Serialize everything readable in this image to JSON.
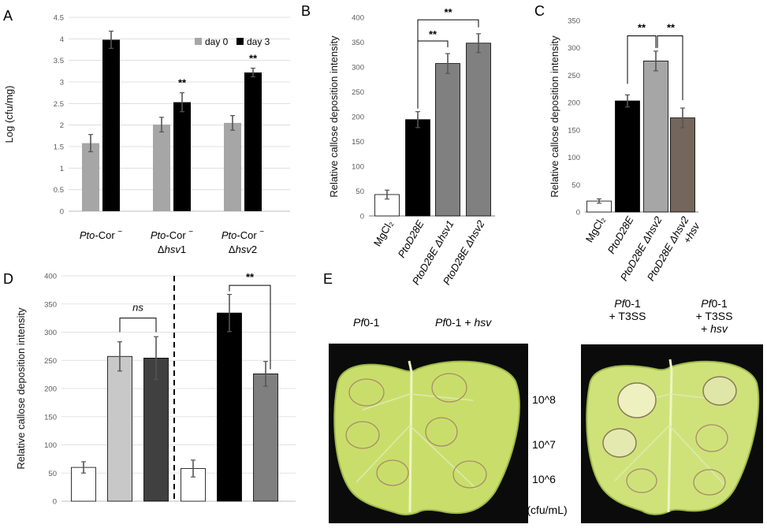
{
  "panel_labels": {
    "A": "A",
    "B": "B",
    "C": "C",
    "D": "D",
    "E": "E"
  },
  "colors": {
    "light_gray": "#a6a6a6",
    "black": "#000000",
    "mid_gray": "#808080",
    "white": "#ffffff",
    "light_gray_d": "#c8c8c8",
    "dark_gray": "#404040",
    "gray_d": "#7f7f7f",
    "brown": "#74665a",
    "leaf": "#c9de6a",
    "background_dark": "#0b0b0b"
  },
  "chart_data": [
    {
      "panel": "A",
      "type": "bar",
      "ylabel": "Log (cfu/mg)",
      "ylim": [
        0,
        4.5
      ],
      "yticks": [
        "0",
        "0.5",
        "1",
        "1.5",
        "2",
        "2.5",
        "3",
        "3.5",
        "4",
        "4.5"
      ],
      "categories": [
        {
          "italic": "Pto",
          "rest": "-Cor ",
          "sup": "−",
          "line2_pre": "",
          "line2_italic": "",
          "line2_post": ""
        },
        {
          "italic": "Pto",
          "rest": "-Cor ",
          "sup": "−",
          "line2_pre": "Δ",
          "line2_italic": "hsv",
          "line2_post": "1"
        },
        {
          "italic": "Pto",
          "rest": "-Cor ",
          "sup": "−",
          "line2_pre": "Δ",
          "line2_italic": "hsv",
          "line2_post": "2"
        }
      ],
      "series": [
        {
          "name": "day 0",
          "color": "#a6a6a6",
          "values": [
            1.58,
            2.01,
            2.05
          ],
          "errors": [
            0.2,
            0.17,
            0.17
          ]
        },
        {
          "name": "day 3",
          "color": "#000000",
          "values": [
            3.98,
            2.53,
            3.22
          ],
          "errors": [
            0.2,
            0.22,
            0.1
          ]
        }
      ],
      "annotations": [
        "",
        "**",
        "**"
      ],
      "legend_position": "top-right",
      "grid": true
    },
    {
      "panel": "B",
      "type": "bar",
      "ylabel": "Relative callose deposition intensity",
      "ylim": [
        0,
        400
      ],
      "yticks": [
        "0",
        "50",
        "100",
        "150",
        "200",
        "250",
        "300",
        "350",
        "400"
      ],
      "categories": [
        "MgCl₂",
        "PtoD28E",
        "PtoD28E Δhsv1",
        "PtoD28E Δhsv2"
      ],
      "values": [
        43,
        194,
        307,
        348
      ],
      "errors": [
        9,
        16,
        20,
        19
      ],
      "bar_colors": [
        "#ffffff",
        "#000000",
        "#808080",
        "#808080"
      ],
      "brackets": [
        {
          "from": 1,
          "to": 2,
          "label": "**"
        },
        {
          "from": 1,
          "to": 3,
          "label": "**"
        }
      ],
      "grid": false
    },
    {
      "panel": "C",
      "type": "bar",
      "ylabel": "Relative callose deposition intensity",
      "ylim": [
        0,
        350
      ],
      "yticks": [
        "0",
        "50",
        "100",
        "150",
        "200",
        "250",
        "300",
        "350"
      ],
      "categories": [
        "MgCl₂",
        "PtoD28E",
        "PtoD28E Δhsv2",
        "PtoD28E Δhsv2 +hsv"
      ],
      "values": [
        20,
        203,
        276,
        172
      ],
      "errors": [
        4,
        11,
        18,
        18
      ],
      "bar_colors": [
        "#ffffff",
        "#000000",
        "#a6a6a6",
        "#74665a"
      ],
      "brackets": [
        {
          "from": 1,
          "to": 2,
          "label": "**"
        },
        {
          "from": 2,
          "to": 3,
          "label": "**"
        }
      ],
      "grid": false
    },
    {
      "panel": "D",
      "type": "bar",
      "ylabel": "Relative callose deposition intensity",
      "ylim": [
        0,
        400
      ],
      "yticks": [
        "0",
        "50",
        "100",
        "150",
        "200",
        "250",
        "300",
        "350",
        "400"
      ],
      "values": [
        60,
        257,
        254,
        58,
        334,
        226
      ],
      "errors": [
        10,
        26,
        38,
        15,
        33,
        22
      ],
      "bar_colors": [
        "#ffffff",
        "#c8c8c8",
        "#404040",
        "#ffffff",
        "#000000",
        "#7f7f7f"
      ],
      "brackets": [
        {
          "from": 1,
          "to": 2,
          "label": "ns"
        },
        {
          "from": 4,
          "to": 5,
          "label": "**"
        }
      ],
      "divider_after": 2,
      "grid": true
    }
  ],
  "panel_e": {
    "left_labels": {
      "a_italic": "Pf",
      "a_rest": "0-1",
      "b_italic": "Pf",
      "b_rest": "0-1 + ",
      "b_italic2": "hsv"
    },
    "right_labels": {
      "a_italic": "Pf",
      "a_rest": "0-1",
      "a_line2": "+ T3SS",
      "b_italic": "Pf",
      "b_rest": "0-1",
      "b_line2": "+ T3SS",
      "b_line3_pre": "+ ",
      "b_line3_italic": "hsv"
    },
    "concentrations": [
      "10^8",
      "10^7",
      "10^6"
    ],
    "unit": "(cfu/mL)"
  }
}
